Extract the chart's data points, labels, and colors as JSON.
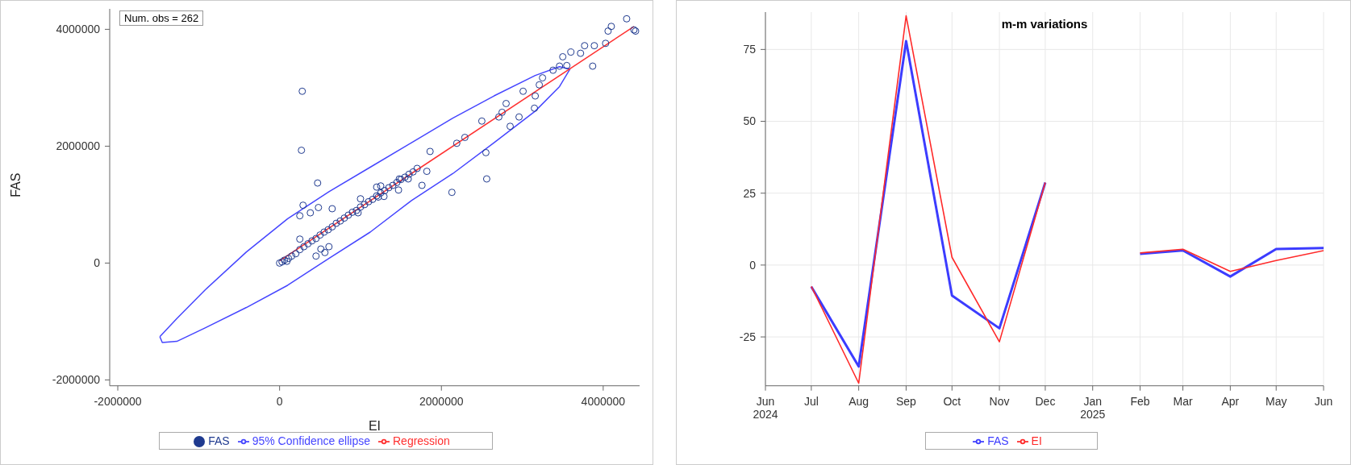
{
  "chart_data": [
    {
      "type": "scatter",
      "xlabel": "EI",
      "ylabel": "FAS",
      "annotations": [
        "Num. obs = 262"
      ],
      "xlim": [
        -2100000,
        4450000
      ],
      "ylim": [
        -2100000,
        4350000
      ],
      "xticks": [
        -2000000,
        0,
        2000000,
        4000000
      ],
      "yticks": [
        -2000000,
        0,
        2000000,
        4000000
      ],
      "legend": "bottom",
      "series": [
        {
          "name": "FAS",
          "type": "scatter",
          "marker": "circle",
          "color": "#1f3a8f",
          "x": [
            0,
            30000,
            60000,
            90000,
            110000,
            150000,
            200000,
            250000,
            300000,
            350000,
            400000,
            450000,
            500000,
            550000,
            600000,
            650000,
            700000,
            750000,
            800000,
            850000,
            900000,
            950000,
            1000000,
            1050000,
            1100000,
            1150000,
            1200000,
            1250000,
            1300000,
            1350000,
            1400000,
            1450000,
            1500000,
            1550000,
            1600000,
            1650000,
            1700000,
            1480000,
            1200000,
            1250000,
            1000000,
            1220000,
            280000,
            270000,
            470000,
            2130000,
            2560000,
            2550000,
            1760000,
            1820000,
            1860000,
            2190000,
            2290000,
            2500000,
            2710000,
            2750000,
            2800000,
            2850000,
            2960000,
            3010000,
            3160000,
            3150000,
            3210000,
            3250000,
            3380000,
            3460000,
            3500000,
            3550000,
            3600000,
            3720000,
            3770000,
            3870000,
            3890000,
            4030000,
            4060000,
            4100000,
            4290000,
            4380000,
            4400000,
            250000,
            480000,
            290000,
            250000,
            380000,
            650000,
            450000,
            510000,
            610000,
            560000,
            1590000,
            970000,
            1290000,
            1470000
          ],
          "values": [
            0,
            20000,
            50000,
            30000,
            80000,
            120000,
            160000,
            230000,
            280000,
            330000,
            380000,
            420000,
            480000,
            530000,
            570000,
            620000,
            680000,
            720000,
            770000,
            820000,
            870000,
            900000,
            960000,
            1000000,
            1050000,
            1090000,
            1150000,
            1200000,
            1240000,
            1290000,
            1330000,
            1380000,
            1430000,
            1470000,
            1520000,
            1560000,
            1620000,
            1440000,
            1300000,
            1320000,
            1100000,
            1130000,
            2940000,
            1930000,
            1370000,
            1210000,
            1440000,
            1890000,
            1330000,
            1570000,
            1910000,
            2050000,
            2150000,
            2430000,
            2500000,
            2580000,
            2730000,
            2340000,
            2500000,
            2940000,
            2860000,
            2650000,
            3050000,
            3170000,
            3300000,
            3370000,
            3530000,
            3380000,
            3610000,
            3590000,
            3720000,
            3370000,
            3720000,
            3760000,
            3970000,
            4050000,
            4180000,
            3990000,
            3970000,
            410000,
            950000,
            990000,
            810000,
            860000,
            930000,
            120000,
            240000,
            280000,
            180000,
            1440000,
            860000,
            1140000,
            1250000
          ]
        },
        {
          "name": "95% Confidence ellipse",
          "type": "line",
          "color": "#4646ff",
          "x": [
            -1480000,
            -1270000,
            -920000,
            -410000,
            100000,
            610000,
            1120000,
            1630000,
            2140000,
            2650000,
            3160000,
            3460000,
            3590000
          ],
          "values": [
            -1260000,
            -950000,
            -460000,
            190000,
            760000,
            1220000,
            1640000,
            2060000,
            2480000,
            2860000,
            3210000,
            3360000,
            3320000
          ]
        },
        {
          "type": "line",
          "color": "#4646ff",
          "x": [
            -1480000,
            -1450000,
            -1270000,
            -920000,
            -410000,
            100000,
            610000,
            1120000,
            1630000,
            2140000,
            2650000,
            3160000,
            3460000,
            3590000
          ],
          "values": [
            -1260000,
            -1360000,
            -1340000,
            -1110000,
            -760000,
            -380000,
            80000,
            530000,
            1070000,
            1530000,
            2060000,
            2600000,
            3020000,
            3320000
          ]
        },
        {
          "name": "Regression",
          "type": "line",
          "color": "#ff3030",
          "x": [
            0,
            4380000
          ],
          "values": [
            40000,
            4050000
          ]
        }
      ]
    },
    {
      "type": "line",
      "title": "m-m variations",
      "x": [
        "2024-07",
        "2024-08",
        "2024-09",
        "2024-10",
        "2024-11",
        "2024-12",
        "2025-01",
        "2025-02",
        "2025-03",
        "2025-04",
        "2025-05",
        "2025-06"
      ],
      "xlim": [
        "2024-06",
        "2025-06"
      ],
      "xticks": [
        {
          "value": "2024-06",
          "label": "Jun\n2024"
        },
        {
          "value": "2024-07",
          "label": "Jul"
        },
        {
          "value": "2024-08",
          "label": "Aug"
        },
        {
          "value": "2024-09",
          "label": "Sep"
        },
        {
          "value": "2024-10",
          "label": "Oct"
        },
        {
          "value": "2024-11",
          "label": "Nov"
        },
        {
          "value": "2024-12",
          "label": "Dec"
        },
        {
          "value": "2025-01",
          "label": "Jan\n2025"
        },
        {
          "value": "2025-02",
          "label": "Feb"
        },
        {
          "value": "2025-03",
          "label": "Mar"
        },
        {
          "value": "2025-04",
          "label": "Apr"
        },
        {
          "value": "2025-05",
          "label": "May"
        },
        {
          "value": "2025-06",
          "label": "Jun"
        }
      ],
      "ylim": [
        -42,
        88
      ],
      "yticks": [
        -25,
        0,
        25,
        50,
        75
      ],
      "grid": true,
      "legend": "bottom",
      "line_style": "solid",
      "series": [
        {
          "name": "FAS",
          "color": "#3c3cff",
          "values": [
            -7.5,
            -35.3,
            77.9,
            -10.6,
            -22.0,
            28.7,
            null,
            3.9,
            5.1,
            -4.0,
            5.6,
            5.9
          ]
        },
        {
          "name": "EI",
          "color": "#ff2a2a",
          "values": [
            -7.4,
            -41.1,
            86.7,
            2.7,
            -26.7,
            28.7,
            null,
            4.2,
            5.5,
            -2.2,
            1.6,
            5.0
          ]
        }
      ]
    }
  ]
}
